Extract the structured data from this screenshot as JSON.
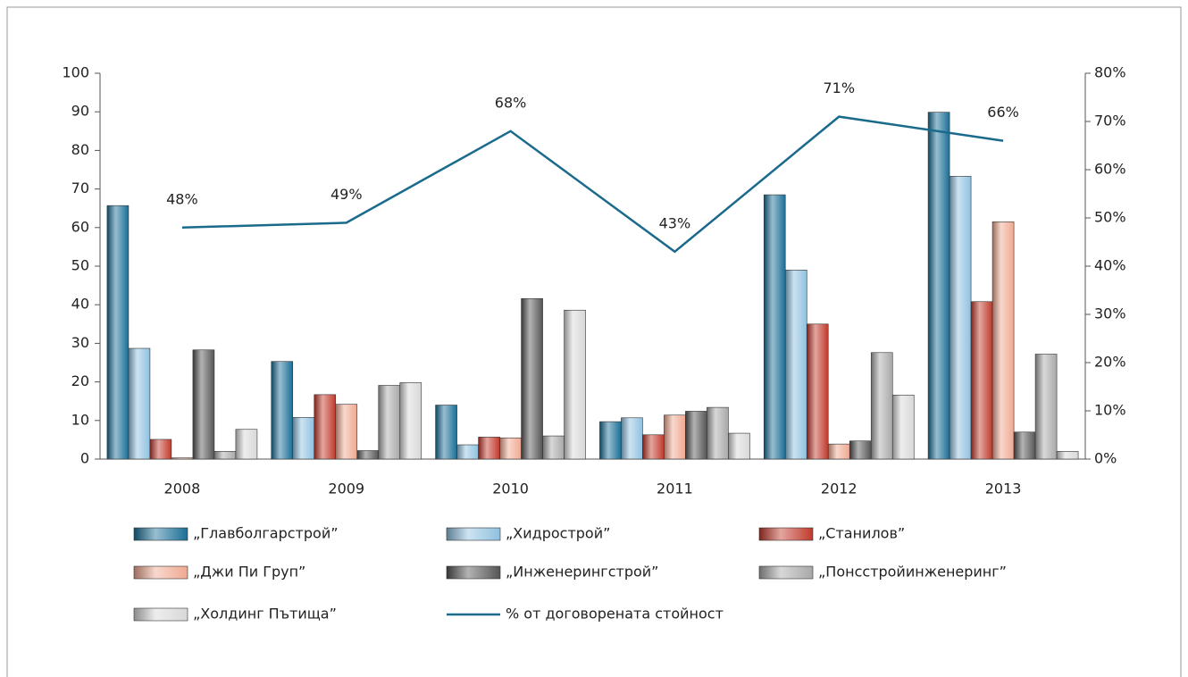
{
  "chart_data": {
    "type": "bar",
    "categories": [
      "2008",
      "2009",
      "2010",
      "2011",
      "2012",
      "2013"
    ],
    "series": [
      {
        "name": "„Главболгарстрой”",
        "color": "#1a6e96",
        "values": [
          65.7,
          25.3,
          14.0,
          9.7,
          68.5,
          89.9
        ]
      },
      {
        "name": "„Хидрострой”",
        "color": "#8fc1e0",
        "values": [
          28.7,
          10.8,
          3.7,
          10.7,
          49.0,
          73.3
        ]
      },
      {
        "name": "„Станилов”",
        "color": "#c0392b",
        "values": [
          5.1,
          16.7,
          5.7,
          6.3,
          35.0,
          40.8
        ]
      },
      {
        "name": "„Джи Пи Груп”",
        "color": "#f0a890",
        "values": [
          0.3,
          14.2,
          5.5,
          11.4,
          3.9,
          61.5
        ]
      },
      {
        "name": "„Инженерингстрой”",
        "color": "#555555",
        "values": [
          28.3,
          2.2,
          41.6,
          12.4,
          4.7,
          7.0
        ]
      },
      {
        "name": "„Понсстройинженеринг”",
        "color": "#a8a8a8",
        "values": [
          2.0,
          19.1,
          6.0,
          13.4,
          27.6,
          27.2
        ]
      },
      {
        "name": "„Холдинг Пътища”",
        "color": "#d8d8d8",
        "values": [
          7.7,
          19.8,
          38.6,
          6.7,
          16.6,
          2.0
        ]
      },
      {
        "name": "% от договорената стойност",
        "color": "#1a6a8c",
        "axis": "y2",
        "values": [
          48,
          49,
          68,
          43,
          71,
          66
        ],
        "value_labels": [
          "48%",
          "49%",
          "68%",
          "43%",
          "71%",
          "66%"
        ]
      }
    ],
    "ylim": [
      0,
      100
    ],
    "yticks": [
      0,
      10,
      20,
      30,
      40,
      50,
      60,
      70,
      80,
      90,
      100
    ],
    "y2lim": [
      0,
      80
    ],
    "y2ticks": [
      {
        "value": 0,
        "label": "0%"
      },
      {
        "value": 10,
        "label": "10%"
      },
      {
        "value": 20,
        "label": "20%"
      },
      {
        "value": 30,
        "label": "30%"
      },
      {
        "value": 40,
        "label": "40%"
      },
      {
        "value": 50,
        "label": "50%"
      },
      {
        "value": 60,
        "label": "60%"
      },
      {
        "value": 70,
        "label": "70%"
      },
      {
        "value": 80,
        "label": "80%"
      }
    ],
    "grid": false,
    "legend": "bottom"
  }
}
